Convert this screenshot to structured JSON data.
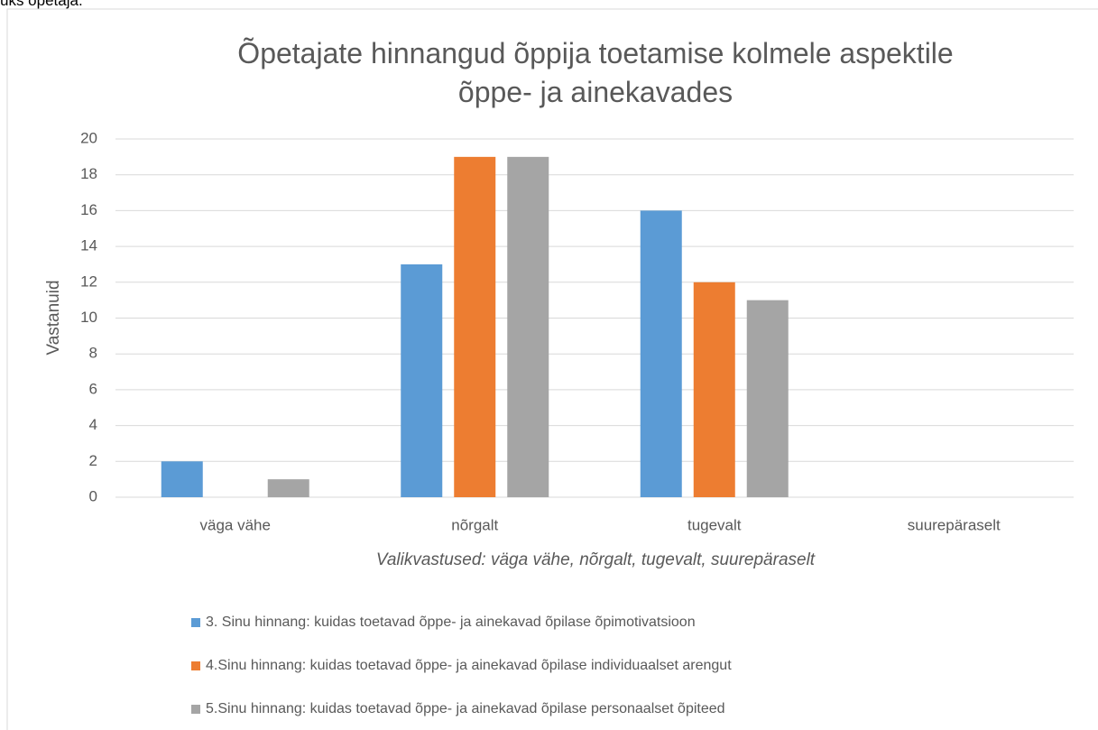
{
  "header_text": "üks õpetaja.",
  "chart_data": {
    "type": "bar",
    "title": "Õpetajate hinnangud õppija toetamise kolmele aspektile õppe- ja ainekavades",
    "y_label": "Vastanuid",
    "x_label": "Valikvastused: väga vähe, nõrgalt, tugevalt, suurepäraselt",
    "categories": [
      "väga vähe",
      "nõrgalt",
      "tugevalt",
      "suurepäraselt"
    ],
    "series": [
      {
        "name": "3. Sinu hinnang: kuidas toetavad õppe- ja ainekavad õpilase õpimotivatsioon",
        "color": "#5b9bd5",
        "values": [
          2,
          13,
          16,
          0
        ]
      },
      {
        "name": "4.Sinu hinnang: kuidas toetavad õppe- ja ainekavad õpilase individuaalset arengut",
        "color": "#ed7d31",
        "values": [
          0,
          19,
          12,
          0
        ]
      },
      {
        "name": "5.Sinu hinnang: kuidas toetavad õppe- ja ainekavad õpilase personaalset õpiteed",
        "color": "#a5a5a5",
        "values": [
          1,
          19,
          11,
          0
        ]
      }
    ],
    "ylim": [
      0,
      20
    ],
    "yticks": [
      0,
      2,
      4,
      6,
      8,
      10,
      12,
      14,
      16,
      18,
      20
    ],
    "grid": true,
    "legend": "bottom"
  }
}
